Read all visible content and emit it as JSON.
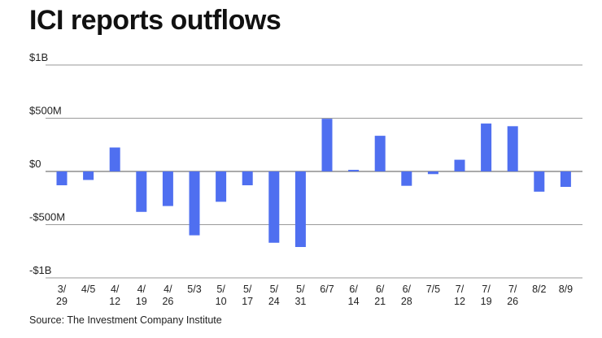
{
  "chart_data": {
    "type": "bar",
    "title": "ICI reports outflows",
    "source": "Source: The Investment Company Institute",
    "xlabel": "",
    "ylabel": "",
    "ylim": [
      -1000,
      1000
    ],
    "y_unit": "millions of dollars",
    "grid": true,
    "y_ticks": [
      {
        "value": 1000,
        "label": "$1B"
      },
      {
        "value": 500,
        "label": "$500M"
      },
      {
        "value": 0,
        "label": "$0"
      },
      {
        "value": -500,
        "label": "-$500M"
      },
      {
        "value": -1000,
        "label": "-$1B"
      }
    ],
    "categories": [
      [
        "3/",
        "29"
      ],
      [
        "4/5"
      ],
      [
        "4/",
        "12"
      ],
      [
        "4/",
        "19"
      ],
      [
        "4/",
        "26"
      ],
      [
        "5/3"
      ],
      [
        "5/",
        "10"
      ],
      [
        "5/",
        "17"
      ],
      [
        "5/",
        "24"
      ],
      [
        "5/",
        "31"
      ],
      [
        "6/7"
      ],
      [
        "6/",
        "14"
      ],
      [
        "6/",
        "21"
      ],
      [
        "6/",
        "28"
      ],
      [
        "7/5"
      ],
      [
        "7/",
        "12"
      ],
      [
        "7/",
        "19"
      ],
      [
        "7/",
        "26"
      ],
      [
        "8/2"
      ],
      [
        "8/9"
      ]
    ],
    "values": [
      -130,
      -80,
      225,
      -380,
      -325,
      -600,
      -285,
      -130,
      -670,
      -710,
      495,
      15,
      335,
      -135,
      -25,
      110,
      450,
      425,
      -190,
      -145
    ],
    "colors": {
      "bar": "#4f6ff0",
      "grid": "#9a9a9a",
      "zero_line": "#555555"
    }
  }
}
